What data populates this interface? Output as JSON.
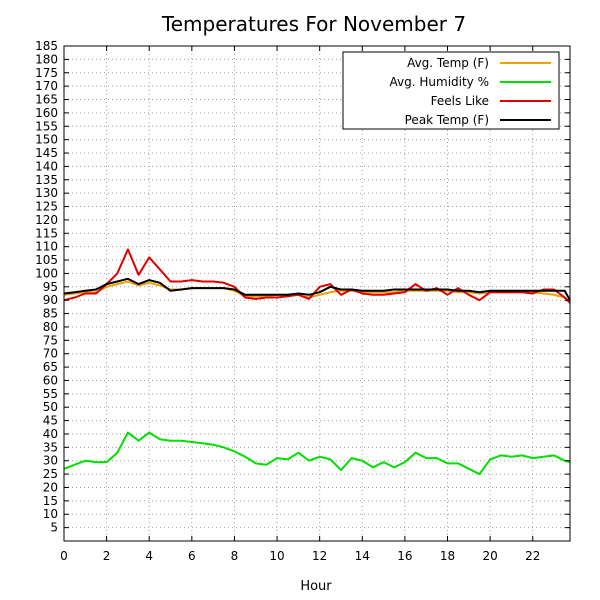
{
  "chart_data": {
    "type": "line",
    "title": "Temperatures For November 7",
    "xlabel": "Hour",
    "ylabel": "",
    "xlim": [
      0,
      23.75
    ],
    "ylim": [
      0,
      185
    ],
    "x_ticks": [
      0,
      2,
      4,
      6,
      8,
      10,
      12,
      14,
      16,
      18,
      20,
      22
    ],
    "y_ticks": [
      5,
      10,
      15,
      20,
      25,
      30,
      35,
      40,
      45,
      50,
      55,
      60,
      65,
      70,
      75,
      80,
      85,
      90,
      95,
      100,
      105,
      110,
      115,
      120,
      125,
      130,
      135,
      140,
      145,
      150,
      155,
      160,
      165,
      170,
      175,
      180,
      185
    ],
    "grid": true,
    "legend_position": "top-right",
    "x": [
      0,
      0.5,
      1,
      1.5,
      2,
      2.5,
      3,
      3.5,
      4,
      4.5,
      5,
      5.5,
      6,
      6.5,
      7,
      7.5,
      8,
      8.5,
      9,
      9.5,
      10,
      10.5,
      11,
      11.5,
      12,
      12.5,
      13,
      13.5,
      14,
      14.5,
      15,
      15.5,
      16,
      16.5,
      17,
      17.5,
      18,
      18.5,
      19,
      19.5,
      20,
      20.5,
      21,
      21.5,
      22,
      22.5,
      23,
      23.5,
      23.75
    ],
    "series": [
      {
        "name": "Avg. Temp (F)",
        "color": "#f0a000",
        "values": [
          92,
          92.5,
          93,
          93,
          95,
          96,
          97,
          95.5,
          96.5,
          95.5,
          94,
          94,
          94.5,
          94.5,
          94.5,
          94.5,
          93.5,
          91.5,
          91.5,
          91.5,
          92,
          92,
          92,
          91,
          92,
          93,
          93.5,
          93.5,
          93,
          93,
          93,
          93,
          93.5,
          93.5,
          93.5,
          93.5,
          93.5,
          93,
          93,
          92.5,
          93,
          93,
          93,
          93,
          93,
          92.5,
          92,
          91,
          89
        ]
      },
      {
        "name": "Avg. Humidity %",
        "color": "#00e000",
        "values": [
          27,
          28.5,
          30,
          29.5,
          29.5,
          33,
          40.5,
          37.5,
          40.5,
          38,
          37.5,
          37.5,
          37,
          36.5,
          36,
          35,
          33.5,
          31.5,
          29,
          28.5,
          31,
          30.5,
          33,
          30,
          31.5,
          30.5,
          26.5,
          31,
          30,
          27.5,
          29.5,
          27.5,
          29.5,
          33,
          31,
          31,
          29,
          29,
          27,
          25,
          30.5,
          32,
          31.5,
          32,
          31,
          31.5,
          32,
          30,
          29.5
        ]
      },
      {
        "name": "Feels Like",
        "color": "#e00000",
        "values": [
          90,
          91,
          92.5,
          92.5,
          96,
          100,
          109,
          99.5,
          106,
          101.5,
          97,
          97,
          97.5,
          97,
          97,
          96.5,
          95,
          91,
          90.5,
          91,
          91,
          91.5,
          92,
          90.5,
          95,
          96,
          92,
          94,
          92.5,
          92,
          92,
          92.5,
          93,
          96,
          93.5,
          94.5,
          92,
          94.5,
          92,
          90,
          93,
          93,
          93,
          93,
          92.5,
          94,
          94,
          91,
          89
        ]
      },
      {
        "name": "Peak Temp (F)",
        "color": "#000000",
        "values": [
          92.5,
          93,
          93.5,
          94,
          96,
          97,
          98,
          96,
          97.5,
          96.5,
          93.5,
          94,
          94.5,
          94.5,
          94.5,
          94.5,
          94,
          92,
          92,
          92,
          92,
          92,
          92.5,
          92,
          93,
          95,
          94,
          94,
          93.5,
          93.5,
          93.5,
          94,
          94,
          94,
          94,
          94,
          94,
          93.5,
          93.5,
          93,
          93.5,
          93.5,
          93.5,
          93.5,
          93.5,
          93.5,
          93.5,
          93.5,
          90
        ]
      }
    ]
  }
}
